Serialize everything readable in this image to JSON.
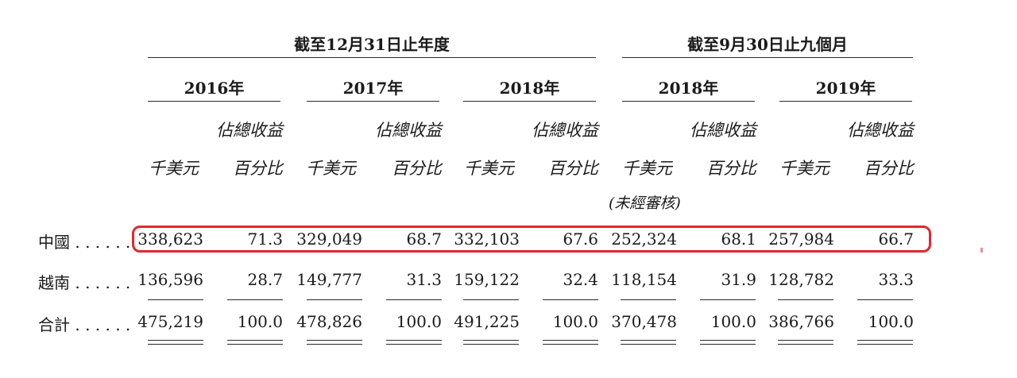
{
  "header": {
    "group_full_year": "截至12月31日止年度",
    "group_nine_months": "截至9月30日止九個月",
    "years": [
      "2016年",
      "2017年",
      "2018年",
      "2018年",
      "2019年"
    ],
    "unit_amount": "千美元",
    "unit_pct_line1": "佔總收益",
    "unit_pct_line2": "百分比",
    "unaudited_note": "(未經審核)"
  },
  "rows": [
    {
      "label": "中國 . . . . . .",
      "values": [
        "338,623",
        "71.3",
        "329,049",
        "68.7",
        "332,103",
        "67.6",
        "252,324",
        "68.1",
        "257,984",
        "66.7"
      ],
      "highlighted": true
    },
    {
      "label": "越南 . . . . . .",
      "values": [
        "136,596",
        "28.7",
        "149,777",
        "31.3",
        "159,122",
        "32.4",
        "118,154",
        "31.9",
        "128,782",
        "33.3"
      ]
    },
    {
      "label": "合計 . . . . . .",
      "values": [
        "475,219",
        "100.0",
        "478,826",
        "100.0",
        "491,225",
        "100.0",
        "370,478",
        "100.0",
        "386,766",
        "100.0"
      ]
    }
  ],
  "colors": {
    "highlight": "#e0282e",
    "text": "#1a1a1a",
    "rule": "#2a2a2a"
  }
}
